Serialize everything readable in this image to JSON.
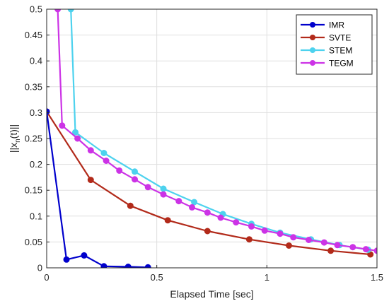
{
  "chart_data": {
    "type": "line",
    "xlabel": "Elapsed Time [sec]",
    "ylabel_main": "||x",
    "ylabel_sub": "n",
    "ylabel_tail": "(t)||",
    "xlim": [
      0,
      1.5
    ],
    "ylim": [
      0,
      0.5
    ],
    "x_ticks": [
      {
        "value": 0,
        "label": "0"
      },
      {
        "value": 0.5,
        "label": "0.5"
      },
      {
        "value": 1,
        "label": "1"
      },
      {
        "value": 1.5,
        "label": "1.5"
      }
    ],
    "y_ticks": [
      {
        "value": 0,
        "label": "0"
      },
      {
        "value": 0.05,
        "label": "0.05"
      },
      {
        "value": 0.1,
        "label": "0.1"
      },
      {
        "value": 0.15,
        "label": "0.15"
      },
      {
        "value": 0.2,
        "label": "0.2"
      },
      {
        "value": 0.25,
        "label": "0.25"
      },
      {
        "value": 0.3,
        "label": "0.3"
      },
      {
        "value": 0.35,
        "label": "0.35"
      },
      {
        "value": 0.4,
        "label": "0.4"
      },
      {
        "value": 0.45,
        "label": "0.45"
      },
      {
        "value": 0.5,
        "label": "0.5"
      }
    ],
    "grid": true,
    "legend_position": "top-right",
    "series": [
      {
        "name": "IMR",
        "color": "#0000cc",
        "x": [
          0,
          0.09,
          0.17,
          0.26,
          0.37,
          0.46
        ],
        "y": [
          0.302,
          0.016,
          0.024,
          0.003,
          0.002,
          0.001
        ]
      },
      {
        "name": "SVTE",
        "color": "#b22a1a",
        "x": [
          0,
          0.2,
          0.38,
          0.55,
          0.73,
          0.92,
          1.1,
          1.29,
          1.47
        ],
        "y": [
          0.302,
          0.17,
          0.12,
          0.092,
          0.071,
          0.055,
          0.043,
          0.033,
          0.026
        ]
      },
      {
        "name": "STEM",
        "color": "#4dd2ee",
        "x": [
          0.11,
          0.13,
          0.26,
          0.4,
          0.53,
          0.67,
          0.8,
          0.93,
          1.06,
          1.2,
          1.33,
          1.46
        ],
        "y": [
          0.5,
          0.262,
          0.222,
          0.186,
          0.153,
          0.127,
          0.104,
          0.085,
          0.068,
          0.055,
          0.044,
          0.035
        ]
      },
      {
        "name": "TEGM",
        "color": "#cc33e6",
        "x": [
          0.05,
          0.07,
          0.14,
          0.2,
          0.27,
          0.33,
          0.4,
          0.46,
          0.53,
          0.6,
          0.66,
          0.73,
          0.79,
          0.86,
          0.93,
          0.99,
          1.06,
          1.12,
          1.19,
          1.26,
          1.32,
          1.39,
          1.45,
          1.5
        ],
        "y": [
          0.5,
          0.275,
          0.25,
          0.227,
          0.207,
          0.188,
          0.171,
          0.156,
          0.142,
          0.129,
          0.117,
          0.107,
          0.097,
          0.088,
          0.08,
          0.072,
          0.066,
          0.059,
          0.054,
          0.049,
          0.044,
          0.04,
          0.036,
          0.033
        ]
      }
    ]
  }
}
